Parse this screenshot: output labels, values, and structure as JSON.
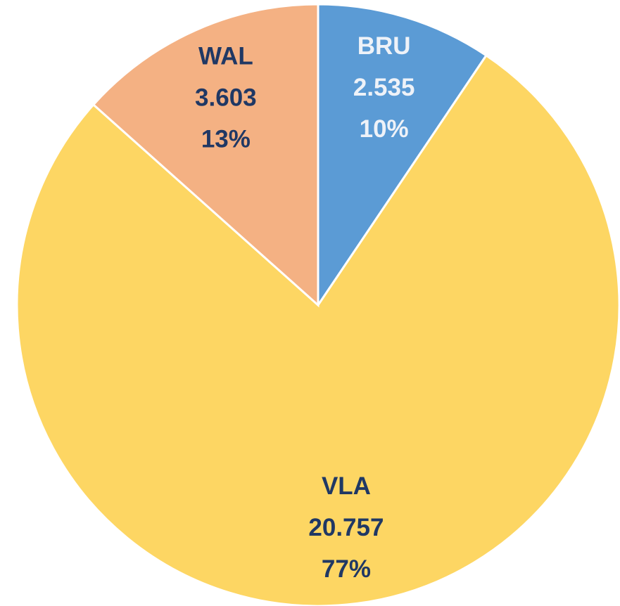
{
  "chart_data": {
    "type": "pie",
    "categories": [
      "BRU",
      "VLA",
      "WAL"
    ],
    "values": [
      2.535,
      20.757,
      3.603
    ],
    "percent_labels": [
      "10%",
      "77%",
      "13%"
    ],
    "colors": [
      "#5b9bd5",
      "#fdd663",
      "#f4b183"
    ],
    "label_colors": [
      "#eef2f8",
      "#203864",
      "#203864"
    ]
  }
}
